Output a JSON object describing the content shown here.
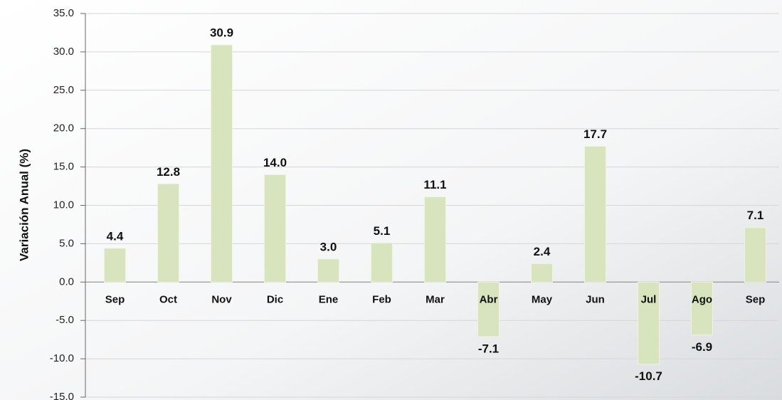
{
  "chart_data": {
    "type": "bar",
    "y_label": "Variación Anual (%)",
    "categories": [
      "Sep",
      "Oct",
      "Nov",
      "Dic",
      "Ene",
      "Feb",
      "Mar",
      "Abr",
      "May",
      "Jun",
      "Jul",
      "Ago",
      "Sep"
    ],
    "values": [
      4.4,
      12.8,
      30.9,
      14.0,
      3.0,
      5.1,
      11.1,
      -7.1,
      2.4,
      17.7,
      -10.7,
      -6.9,
      7.1
    ],
    "value_labels": [
      "4.4",
      "12.8",
      "30.9",
      "14.0",
      "3.0",
      "5.1",
      "11.1",
      "-7.1",
      "2.4",
      "17.7",
      "-10.7",
      "-6.9",
      "7.1"
    ],
    "color": "#d7e4bd",
    "ylim": [
      -15,
      35
    ],
    "yticks": [
      {
        "value": -15,
        "label": "-15.0"
      },
      {
        "value": -10,
        "label": "-10.0"
      },
      {
        "value": -5,
        "label": "-5.0"
      },
      {
        "value": 0,
        "label": "0.0"
      },
      {
        "value": 5,
        "label": "5.0"
      },
      {
        "value": 10,
        "label": "10.0"
      },
      {
        "value": 15,
        "label": "15.0"
      },
      {
        "value": 20,
        "label": "20.0"
      },
      {
        "value": 25,
        "label": "25.0"
      },
      {
        "value": 30,
        "label": "30.0"
      },
      {
        "value": 35,
        "label": "35.0"
      }
    ],
    "grid": true
  }
}
